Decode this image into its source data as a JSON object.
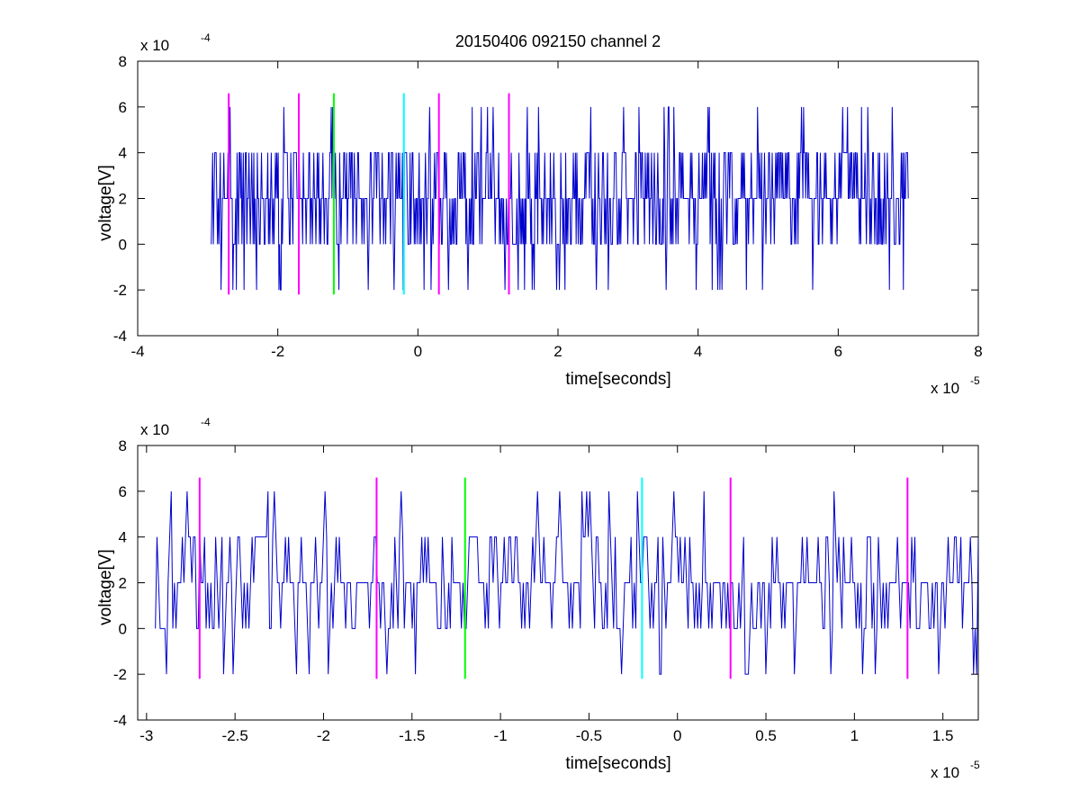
{
  "title": "20150406 092150 channel 2",
  "chart_data": [
    {
      "type": "line",
      "xlabel": "time[seconds]",
      "ylabel": "voltage[V]",
      "x_multiplier": "x 10",
      "x_exponent": "-5",
      "y_multiplier": "x 10",
      "y_exponent": "-4",
      "xlim": [
        -4,
        8
      ],
      "ylim": [
        -4,
        8
      ],
      "x_ticks": [
        "-4",
        "-2",
        "0",
        "2",
        "4",
        "6",
        "8"
      ],
      "y_ticks": [
        "-4",
        "-2",
        "0",
        "2",
        "4",
        "6",
        "8"
      ],
      "grid": false,
      "series": [
        {
          "color": "#0000cc",
          "x_range": [
            -2.95,
            7.0
          ],
          "values_range": [
            -2,
            6
          ]
        }
      ],
      "markers": [
        {
          "x": -2.7,
          "color": "#ff00ff",
          "y_range": [
            -2.2,
            6.6
          ]
        },
        {
          "x": -1.7,
          "color": "#ff00ff",
          "y_range": [
            -2.2,
            6.6
          ]
        },
        {
          "x": -1.2,
          "color": "#00ff00",
          "y_range": [
            -2.2,
            6.6
          ]
        },
        {
          "x": -0.2,
          "color": "#00ffff",
          "y_range": [
            -2.2,
            6.6
          ]
        },
        {
          "x": 0.3,
          "color": "#ff00ff",
          "y_range": [
            -2.2,
            6.6
          ]
        },
        {
          "x": 1.3,
          "color": "#ff00ff",
          "y_range": [
            -2.2,
            6.6
          ]
        }
      ]
    },
    {
      "type": "line",
      "xlabel": "time[seconds]",
      "ylabel": "voltage[V]",
      "x_multiplier": "x 10",
      "x_exponent": "-5",
      "y_multiplier": "x 10",
      "y_exponent": "-4",
      "xlim": [
        -3.05,
        1.7
      ],
      "ylim": [
        -4,
        8
      ],
      "x_ticks": [
        "-3",
        "-2.5",
        "-2",
        "-1.5",
        "-1",
        "-0.5",
        "0",
        "0.5",
        "1",
        "1.5"
      ],
      "y_ticks": [
        "-4",
        "-2",
        "0",
        "2",
        "4",
        "6",
        "8"
      ],
      "grid": false,
      "series": [
        {
          "color": "#0000cc",
          "x_range": [
            -2.95,
            1.7
          ],
          "values_range": [
            -2,
            6
          ]
        }
      ],
      "markers": [
        {
          "x": -2.7,
          "color": "#ff00ff",
          "y_range": [
            -2.2,
            6.6
          ]
        },
        {
          "x": -1.7,
          "color": "#ff00ff",
          "y_range": [
            -2.2,
            6.6
          ]
        },
        {
          "x": -1.2,
          "color": "#00ff00",
          "y_range": [
            -2.2,
            6.6
          ]
        },
        {
          "x": -0.2,
          "color": "#00ffff",
          "y_range": [
            -2.2,
            6.6
          ]
        },
        {
          "x": 0.3,
          "color": "#ff00ff",
          "y_range": [
            -2.2,
            6.6
          ]
        },
        {
          "x": 1.3,
          "color": "#ff00ff",
          "y_range": [
            -2.2,
            6.6
          ]
        }
      ]
    }
  ]
}
